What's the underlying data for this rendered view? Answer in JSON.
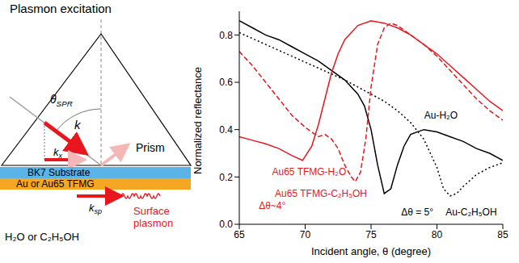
{
  "chart_data": {
    "type": "line",
    "xlabel": "Incident angle, θ (degree)",
    "ylabel": "Normalized reflectance",
    "xlim": [
      65,
      85
    ],
    "xticks": [
      65,
      70,
      75,
      80,
      85
    ],
    "ylim": [
      0,
      0.9
    ],
    "yticks": [
      {
        "value": 0,
        "label": "0.0"
      },
      {
        "value": 0.2,
        "label": "0.2"
      },
      {
        "value": 0.4,
        "label": "0.4"
      },
      {
        "value": 0.6,
        "label": "0.6"
      },
      {
        "value": 0.8,
        "label": "0.8"
      }
    ],
    "grid": false,
    "series": [
      {
        "name": "Au-H₂O",
        "color": "#000000",
        "line_style": "solid",
        "label_pos": [
          80.3,
          0.46
        ],
        "x": [
          65,
          66,
          67,
          68,
          69,
          70,
          71,
          72,
          73,
          74,
          74.5,
          75,
          75.5,
          76,
          76.5,
          77,
          77.5,
          78,
          79,
          80,
          81,
          82,
          83,
          84,
          85
        ],
        "values": [
          0.86,
          0.83,
          0.8,
          0.78,
          0.75,
          0.72,
          0.69,
          0.65,
          0.61,
          0.55,
          0.5,
          0.4,
          0.25,
          0.13,
          0.15,
          0.25,
          0.33,
          0.38,
          0.4,
          0.39,
          0.37,
          0.35,
          0.32,
          0.3,
          0.27
        ]
      },
      {
        "name": "Au-C₂H₅OH",
        "color": "#000000",
        "line_style": "dotted",
        "label_pos": [
          82.6,
          0.05
        ],
        "x": [
          65,
          67,
          69,
          71,
          73,
          75,
          76,
          77,
          78,
          79,
          80,
          80.5,
          81,
          81.5,
          82,
          83,
          84,
          85
        ],
        "values": [
          0.81,
          0.76,
          0.71,
          0.66,
          0.61,
          0.55,
          0.52,
          0.48,
          0.43,
          0.36,
          0.24,
          0.15,
          0.12,
          0.13,
          0.16,
          0.21,
          0.24,
          0.26
        ]
      },
      {
        "name": "Au65 TFMG-H₂O",
        "color": "#e8171e",
        "line_style": "solid",
        "label_pos": [
          70.3,
          0.22
        ],
        "x": [
          65,
          66,
          67,
          68,
          69,
          69.8,
          70.5,
          71,
          71.5,
          72,
          72.5,
          73,
          74,
          75,
          76,
          77,
          78,
          79,
          80,
          81,
          82,
          83,
          84,
          85
        ],
        "values": [
          0.37,
          0.355,
          0.34,
          0.32,
          0.29,
          0.27,
          0.33,
          0.42,
          0.53,
          0.64,
          0.72,
          0.78,
          0.84,
          0.86,
          0.85,
          0.83,
          0.8,
          0.76,
          0.72,
          0.67,
          0.62,
          0.57,
          0.52,
          0.48
        ]
      },
      {
        "name": "Au65 TFMG-C₂H₅OH",
        "color": "#e8171e",
        "line_style": "dashed",
        "label_pos": [
          71.2,
          0.13
        ],
        "x": [
          65,
          66,
          67,
          68,
          69,
          70,
          71,
          71.5,
          72,
          72.5,
          73,
          73.5,
          73.8,
          74.2,
          74.6,
          75,
          75.5,
          76,
          76.5,
          77,
          78,
          79,
          80,
          81,
          82,
          83,
          84,
          85
        ],
        "values": [
          0.73,
          0.67,
          0.6,
          0.53,
          0.46,
          0.41,
          0.37,
          0.38,
          0.36,
          0.32,
          0.25,
          0.2,
          0.18,
          0.22,
          0.36,
          0.58,
          0.76,
          0.83,
          0.85,
          0.84,
          0.8,
          0.76,
          0.71,
          0.65,
          0.59,
          0.53,
          0.48,
          0.44
        ]
      }
    ],
    "annotations": [
      {
        "text": "Δθ~4°",
        "x": 67.5,
        "y": 0.08,
        "color": "#e8171e"
      },
      {
        "text": "Δθ = 5°",
        "x": 78.5,
        "y": 0.05,
        "color": "#000000"
      }
    ]
  },
  "diagram": {
    "title": "Plasmon excitation",
    "angle": {
      "base": "θ",
      "sub": "SPR"
    },
    "k": "k",
    "kx": {
      "base": "k",
      "sub": "x"
    },
    "prism": "Prism",
    "substrate": "BK7 Substrate",
    "film": "Au or Au65 TFMG",
    "ksp": {
      "base": "k",
      "sub": "sp"
    },
    "wave": "Surface plasmon",
    "medium": "H₂O or C₂H₅OH"
  }
}
